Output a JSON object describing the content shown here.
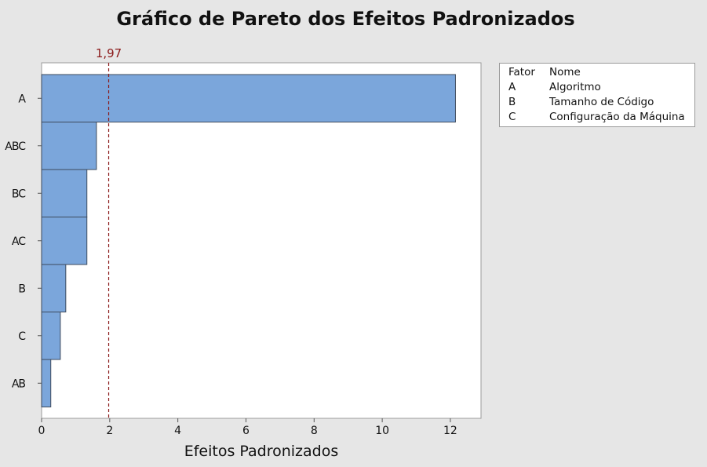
{
  "chart_data": {
    "type": "bar",
    "orientation": "horizontal",
    "title": "Gráfico de Pareto dos Efeitos Padronizados",
    "xlabel": "Efeitos Padronizados",
    "ylabel": "",
    "categories": [
      "A",
      "ABC",
      "BC",
      "AC",
      "B",
      "C",
      "AB"
    ],
    "values": [
      12.15,
      1.61,
      1.33,
      1.33,
      0.71,
      0.55,
      0.27
    ],
    "xlim": [
      0,
      12.9
    ],
    "xticks": [
      0,
      2,
      4,
      6,
      8,
      10,
      12
    ],
    "reference_line": {
      "value": 1.97,
      "label": "1,97",
      "color": "#8b1a1a"
    },
    "bar_color": "#7ba6db",
    "bar_edge_color": "#3d4a5c",
    "grid": false,
    "legend": {
      "placement": "top-right",
      "header": {
        "code": "Fator",
        "name": "Nome"
      },
      "items": [
        {
          "code": "A",
          "name": "Algoritmo"
        },
        {
          "code": "B",
          "name": "Tamanho de Código"
        },
        {
          "code": "C",
          "name": "Configuração da Máquina"
        }
      ]
    }
  }
}
